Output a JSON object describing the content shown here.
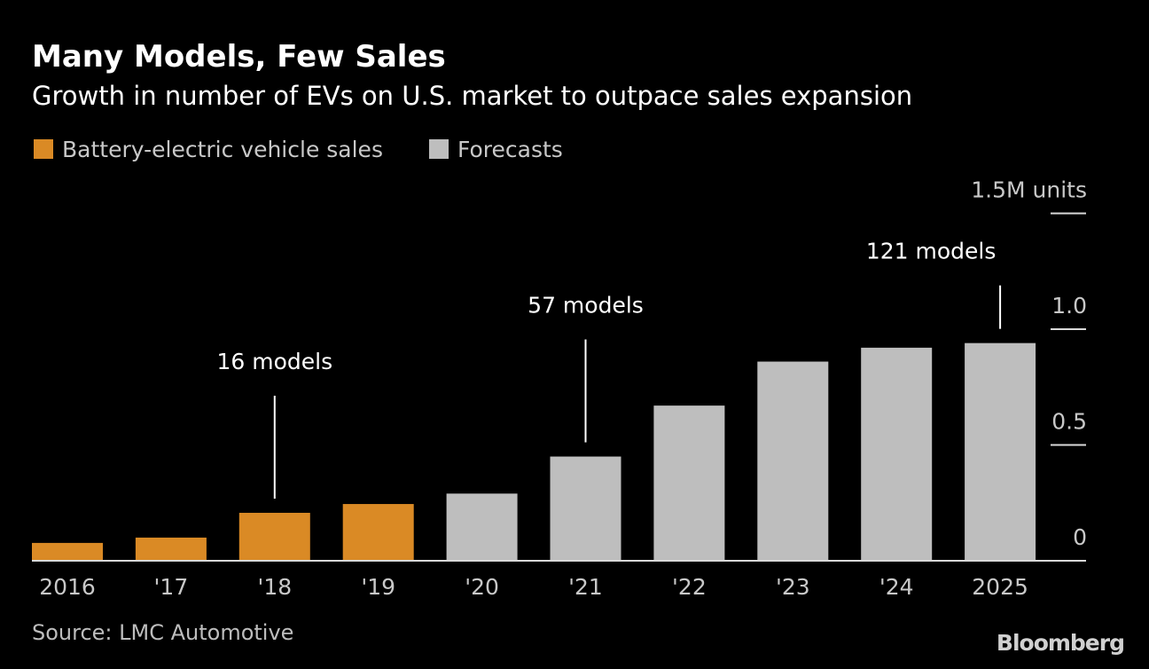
{
  "chart_data": {
    "type": "bar",
    "title": "Many Models, Few Sales",
    "subtitle": "Growth in number of EVs on U.S. market to outpace sales expansion",
    "legend": [
      {
        "name": "Battery-electric vehicle sales",
        "color": "#DA8A25"
      },
      {
        "name": "Forecasts",
        "color": "#BEBEBE"
      }
    ],
    "legend_placement": "top-left",
    "categories": [
      "2016",
      "'17",
      "'18",
      "'19",
      "'20",
      "'21",
      "'22",
      "'23",
      "'24",
      "2025"
    ],
    "values": [
      0.077,
      0.1,
      0.207,
      0.245,
      0.29,
      0.45,
      0.67,
      0.86,
      0.92,
      0.94
    ],
    "is_forecast": [
      false,
      false,
      false,
      false,
      true,
      true,
      true,
      true,
      true,
      true
    ],
    "ylabel": "1.5M units",
    "yticks": [
      {
        "value": 0,
        "label": "0"
      },
      {
        "value": 0.5,
        "label": "0.5"
      },
      {
        "value": 1.0,
        "label": "1.0"
      },
      {
        "value": 1.5,
        "label": "1.5M units"
      }
    ],
    "ylim": [
      0,
      1.5
    ],
    "y_axis_side": "right",
    "grid": false,
    "annotations": [
      {
        "category": "'18",
        "text": "16 models"
      },
      {
        "category": "'21",
        "text": "57 models"
      },
      {
        "category": "2025",
        "text": "121 models"
      }
    ],
    "source": "Source: LMC Automotive",
    "brand": "Bloomberg"
  }
}
